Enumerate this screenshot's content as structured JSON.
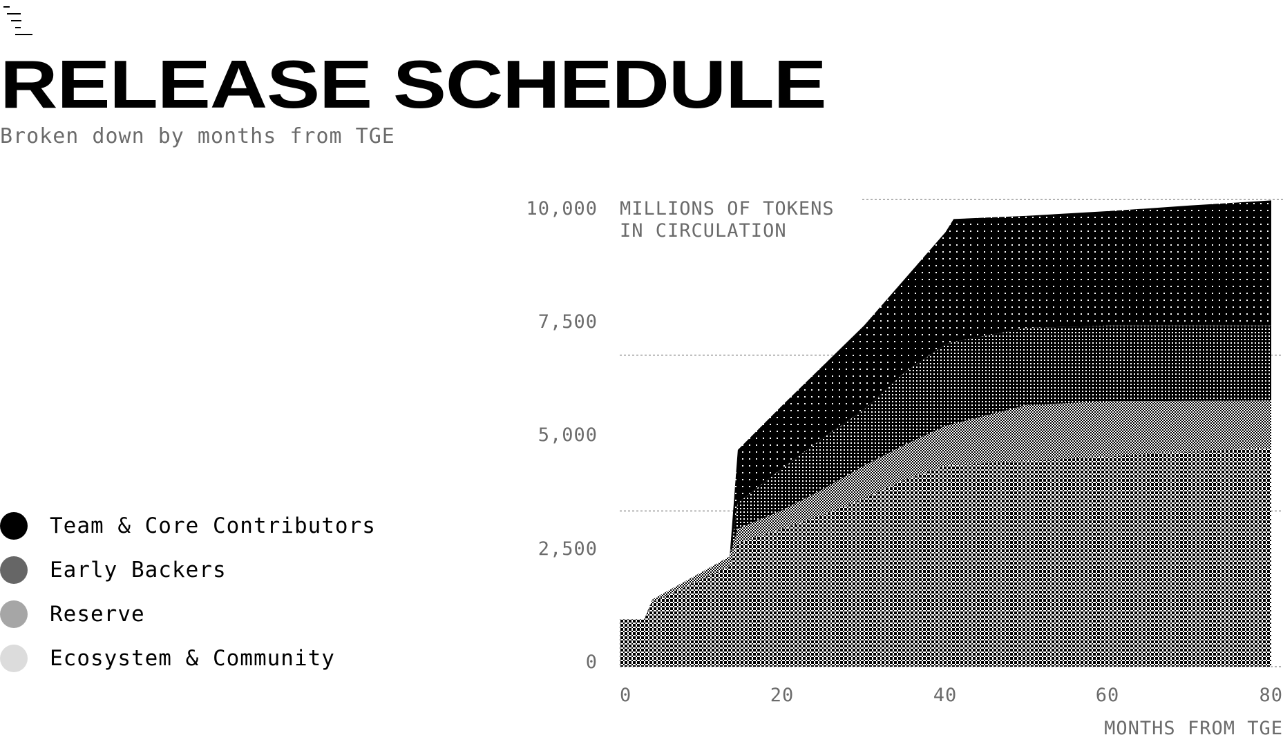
{
  "header": {
    "menu_icon": "staircase-menu-icon",
    "title": "RELEASE SCHEDULE",
    "subtitle": "Broken down by months from TGE"
  },
  "legend": [
    {
      "label": "Team & Core Contributors",
      "color": "#000000"
    },
    {
      "label": "Early Backers",
      "color": "#666666"
    },
    {
      "label": "Reserve",
      "color": "#a6a6a6"
    },
    {
      "label": "Ecosystem & Community",
      "color": "#dcdcdc"
    }
  ],
  "chart_data": {
    "type": "area",
    "stacked": true,
    "ylabel_lines": [
      "MILLIONS OF TOKENS",
      "IN CIRCULATION"
    ],
    "xlabel": "MONTHS FROM TGE",
    "xlim": [
      0,
      80
    ],
    "ylim": [
      0,
      10000
    ],
    "x_ticks": [
      "0",
      "20",
      "40",
      "60",
      "80"
    ],
    "y_ticks": [
      "10,000",
      "7,500",
      "5,000",
      "2,500",
      "0"
    ],
    "grid": "dotted",
    "x": [
      0,
      3,
      4,
      13.5,
      14.5,
      20,
      25,
      30,
      35,
      40,
      41,
      50,
      60,
      70,
      80
    ],
    "series": [
      {
        "name": "Ecosystem & Community",
        "pattern": "light-cross",
        "values": [
          1016,
          1016,
          1380,
          2150,
          2650,
          2950,
          3250,
          3600,
          4000,
          4300,
          4320,
          4400,
          4500,
          4600,
          4680
        ]
      },
      {
        "name": "Reserve",
        "pattern": "checker",
        "values": [
          0,
          0,
          56,
          210,
          300,
          400,
          550,
          700,
          750,
          850,
          880,
          1200,
          1180,
          1090,
          1020
        ]
      },
      {
        "name": "Early Backers",
        "pattern": "dense-grid",
        "values": [
          0,
          0,
          0,
          0,
          550,
          900,
          1100,
          1200,
          1550,
          1750,
          1750,
          1650,
          1620,
          1610,
          1600
        ]
      },
      {
        "name": "Team & Core Contributors",
        "pattern": "black-dots",
        "values": [
          0,
          0,
          0,
          0,
          1140,
          1350,
          1550,
          1800,
          2000,
          2400,
          2630,
          2400,
          2450,
          2570,
          2680
        ]
      }
    ]
  }
}
